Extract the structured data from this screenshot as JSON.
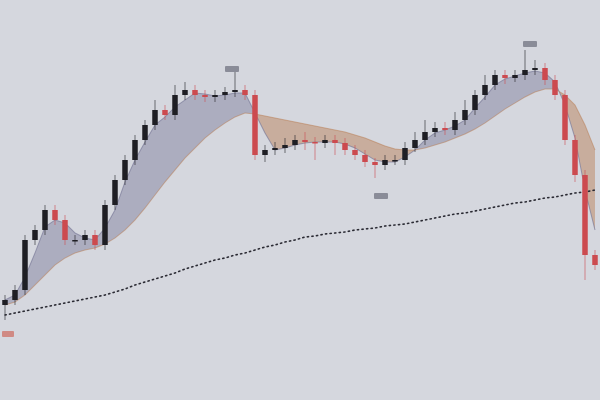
{
  "chart_data": {
    "type": "candlestick",
    "ylim": [
      0,
      400
    ],
    "series": [
      {
        "name": "price",
        "up_color": "#1e1e24",
        "down_color": "#cc4a4f",
        "open": [
          95,
          100,
          110,
          160,
          170,
          190,
          180,
          160,
          160,
          165,
          155,
          195,
          220,
          240,
          260,
          275,
          290,
          285,
          305,
          310,
          305,
          303,
          305,
          308,
          310,
          305,
          245,
          250,
          252,
          255,
          260,
          258,
          257,
          260,
          257,
          250,
          245,
          238,
          235,
          240,
          240,
          252,
          260,
          268,
          272,
          270,
          280,
          290,
          305,
          315,
          325,
          322,
          325,
          330,
          332,
          320,
          305,
          260,
          225,
          145
        ],
        "high": [
          105,
          115,
          165,
          175,
          195,
          195,
          185,
          165,
          170,
          170,
          200,
          225,
          245,
          265,
          280,
          300,
          295,
          315,
          318,
          315,
          310,
          310,
          313,
          330,
          315,
          310,
          255,
          258,
          262,
          265,
          268,
          263,
          265,
          265,
          262,
          255,
          250,
          242,
          245,
          245,
          258,
          268,
          280,
          278,
          278,
          288,
          300,
          310,
          325,
          330,
          330,
          330,
          350,
          340,
          337,
          325,
          310,
          265,
          230,
          150
        ],
        "low": [
          80,
          95,
          105,
          155,
          165,
          175,
          155,
          155,
          155,
          150,
          150,
          190,
          215,
          235,
          255,
          270,
          280,
          280,
          300,
          300,
          298,
          298,
          300,
          303,
          300,
          240,
          238,
          245,
          247,
          250,
          250,
          240,
          252,
          245,
          245,
          240,
          233,
          222,
          230,
          235,
          235,
          248,
          255,
          263,
          265,
          265,
          275,
          285,
          300,
          310,
          316,
          318,
          320,
          325,
          315,
          300,
          255,
          218,
          120,
          130
        ],
        "close": [
          100,
          110,
          160,
          170,
          190,
          180,
          160,
          160,
          165,
          155,
          195,
          220,
          240,
          260,
          275,
          290,
          285,
          305,
          310,
          305,
          303,
          305,
          308,
          310,
          305,
          245,
          250,
          252,
          255,
          260,
          258,
          257,
          260,
          257,
          250,
          245,
          238,
          235,
          240,
          240,
          252,
          260,
          268,
          272,
          270,
          280,
          290,
          305,
          315,
          325,
          322,
          325,
          330,
          332,
          320,
          305,
          260,
          225,
          145,
          135
        ]
      },
      {
        "name": "fast",
        "color": "#7b7b98",
        "values": [
          100,
          105,
          123,
          147,
          173,
          180,
          177,
          167,
          162,
          160,
          172,
          190,
          218,
          240,
          258,
          275,
          283,
          293,
          300,
          307,
          306,
          304,
          305,
          307,
          307,
          287,
          267,
          250,
          252,
          255,
          257,
          258,
          258,
          258,
          256,
          252,
          246,
          240,
          238,
          238,
          243,
          250,
          260,
          267,
          270,
          274,
          280,
          292,
          303,
          315,
          321,
          324,
          327,
          329,
          327,
          318,
          295,
          262,
          210,
          170
        ]
      },
      {
        "name": "slow",
        "color": "#b87a4e",
        "values": [
          95,
          98,
          105,
          115,
          125,
          135,
          142,
          147,
          150,
          152,
          156,
          162,
          170,
          180,
          192,
          205,
          218,
          230,
          242,
          252,
          262,
          270,
          277,
          283,
          287,
          286,
          284,
          282,
          280,
          278,
          276,
          274,
          272,
          270,
          268,
          265,
          262,
          258,
          254,
          251,
          250,
          250,
          252,
          255,
          258,
          262,
          266,
          271,
          277,
          284,
          291,
          297,
          303,
          308,
          311,
          311,
          305,
          295,
          275,
          250
        ]
      },
      {
        "name": "long",
        "color": "#2a2a33",
        "values": [
          85,
          87,
          89,
          91,
          93,
          95,
          97,
          99,
          101,
          103,
          105,
          108,
          111,
          115,
          118,
          121,
          124,
          127,
          131,
          134,
          137,
          140,
          142,
          145,
          147,
          150,
          153,
          155,
          158,
          160,
          163,
          164,
          166,
          167,
          168,
          170,
          171,
          172,
          174,
          175,
          176,
          178,
          180,
          182,
          184,
          186,
          187,
          189,
          191,
          193,
          195,
          197,
          198,
          200,
          202,
          203,
          205,
          207,
          208,
          210
        ]
      }
    ]
  }
}
